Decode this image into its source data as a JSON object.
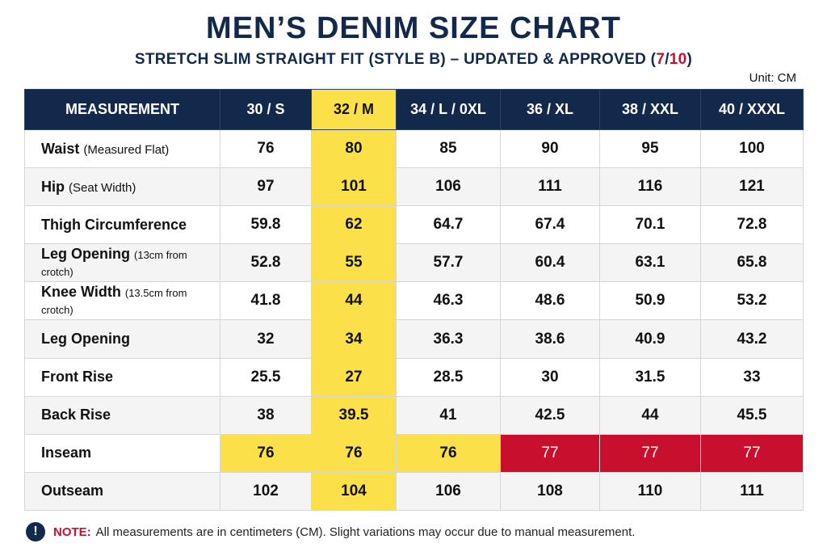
{
  "title": "MEN’S DENIM SIZE CHART",
  "subtitle": {
    "text": "STRETCH SLIM STRAIGHT FIT (STYLE B) – UPDATED & APPROVED (",
    "num": "7",
    "sep": "/",
    "den": "10",
    "close": ")"
  },
  "unit": "Unit: CM",
  "colors": {
    "navy": "#13294b",
    "highlight_yellow": "#fbe04a",
    "alert_red": "#c8102e"
  },
  "table": {
    "headers": [
      "MEASUREMENT",
      "30 / S",
      "32 / M",
      "34 / L / 0XL",
      "36 / XL",
      "38 / XXL",
      "40 / XXXL"
    ],
    "rows": [
      {
        "label": "Waist",
        "note": "(Measured Flat)",
        "values": [
          "76",
          "80",
          "85",
          "90",
          "95",
          "100"
        ]
      },
      {
        "label": "Hip",
        "note": "(Seat Width)",
        "values": [
          "97",
          "101",
          "106",
          "111",
          "116",
          "121"
        ]
      },
      {
        "label": "Thigh Circumference",
        "note": "",
        "values": [
          "59.8",
          "62",
          "64.7",
          "67.4",
          "70.1",
          "72.8"
        ]
      },
      {
        "label": "Leg Opening",
        "note": "(13cm from crotch)",
        "values": [
          "52.8",
          "55",
          "57.7",
          "60.4",
          "63.1",
          "65.8"
        ]
      },
      {
        "label": "Knee Width",
        "note": "(13.5cm from crotch)",
        "values": [
          "41.8",
          "44",
          "46.3",
          "48.6",
          "50.9",
          "53.2"
        ]
      },
      {
        "label": "Leg Opening",
        "note": "",
        "values": [
          "32",
          "34",
          "36.3",
          "38.6",
          "40.9",
          "43.2"
        ]
      },
      {
        "label": "Front Rise",
        "note": "",
        "values": [
          "25.5",
          "27",
          "28.5",
          "30",
          "31.5",
          "33"
        ]
      },
      {
        "label": "Back Rise",
        "note": "",
        "values": [
          "38",
          "39.5",
          "41",
          "42.5",
          "44",
          "45.5"
        ]
      },
      {
        "label": "Inseam",
        "note": "",
        "values": [
          "76",
          "76",
          "76",
          "77",
          "77",
          "77"
        ]
      },
      {
        "label": "Outseam",
        "note": "",
        "values": [
          "102",
          "104",
          "106",
          "108",
          "110",
          "111"
        ]
      }
    ]
  },
  "footnote": {
    "icon": "!",
    "label": "NOTE:",
    "text": "All measurements are in centimeters (CM). Slight variations may occur due to manual measurement."
  }
}
